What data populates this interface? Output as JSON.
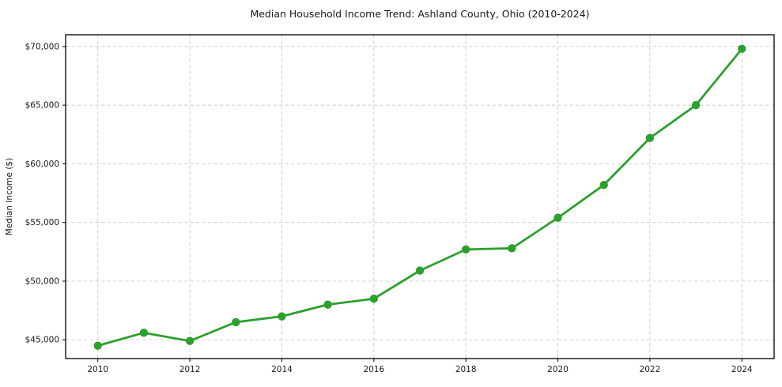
{
  "chart_data": {
    "type": "line",
    "title": "Median Household Income Trend: Ashland County, Ohio (2010-2024)",
    "xlabel": "",
    "ylabel": "Median Income ($)",
    "x": [
      2010,
      2011,
      2012,
      2013,
      2014,
      2015,
      2016,
      2017,
      2018,
      2019,
      2020,
      2021,
      2022,
      2023,
      2024
    ],
    "values": [
      44500,
      45600,
      44900,
      46500,
      47000,
      48000,
      48500,
      50900,
      52700,
      52800,
      55400,
      58200,
      62200,
      65000,
      69800
    ],
    "x_ticks": [
      2010,
      2012,
      2014,
      2016,
      2018,
      2020,
      2022,
      2024
    ],
    "y_ticks": [
      45000,
      50000,
      55000,
      60000,
      65000,
      70000
    ],
    "y_tick_labels": [
      "$45,000",
      "$50,000",
      "$55,000",
      "$60,000",
      "$65,000",
      "$70,000"
    ],
    "xlim": [
      2009.3,
      2024.7
    ],
    "ylim": [
      43400,
      71000
    ],
    "grid": "dashed both axes",
    "legend": "none",
    "line_color": "#2ca02c",
    "marker_color": "#2ca02c",
    "grid_color": "#cccccc",
    "spine_color": "#000000",
    "text_color": "#1a1a1a",
    "background_color": "#ffffff"
  }
}
